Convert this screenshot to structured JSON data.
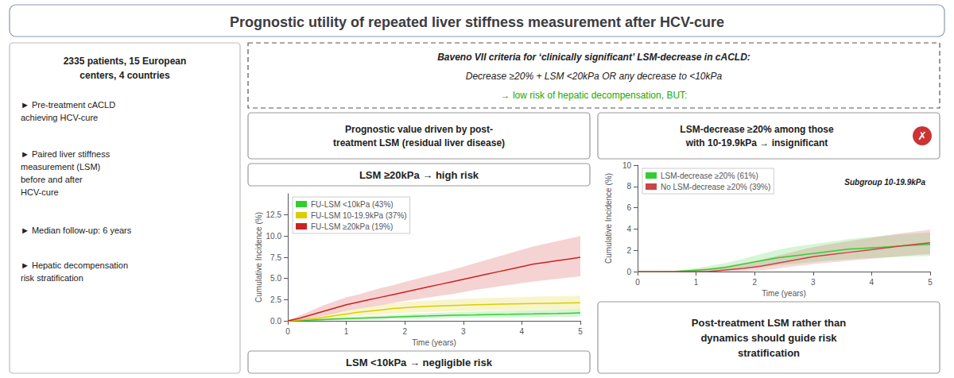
{
  "title": "Prognostic utility of repeated liver stiffness measurement after HCV-cure",
  "annotations": [
    {
      "text": "2335 patients, 15 European\ncenters, 4 countries"
    },
    {
      "text": "► Pre-treatment cACLD\nachieving HCV-cure"
    },
    {
      "text": "► Paired liver stiffness\nmeasurement (LSM)\nbefore and after\nHCV-cure"
    },
    {
      "text": "► Median follow-up: 6 years"
    },
    {
      "text": "► Hepatic decompensation\nrisk stratification"
    },
    {
      "text": "Baveno VII criteria for ‘clinically significant’ LSM-decrease in cACLD:"
    },
    {
      "text": "Decrease ≥20% + LSM <20kPa OR any decrease to <10kPa"
    },
    {
      "text": "→ low risk of hepatic decompensation, BUT:",
      "color": "#22aa00"
    },
    {
      "text": "Prognostic value driven by post-\ntreatment LSM (residual liver disease)"
    },
    {
      "text": "LSM-decrease ≥20% among those\nwith 10-19.9kPa → insignificant"
    },
    {
      "text": "✗",
      "color": "#cc3333"
    },
    {
      "text": "LSM ≥20kPa → high risk"
    },
    {
      "text": "LSM <10kPa → negligible risk"
    },
    {
      "text": "Post-treatment LSM rather than\ndynamics should guide risk\nstratification"
    }
  ],
  "chart_data": [
    {
      "type": "line",
      "xlabel": "Time (years)",
      "ylabel": "Cumulative Incidence (%)",
      "xlim": [
        0,
        5
      ],
      "ylim": [
        0,
        15
      ],
      "xticks": [
        0,
        1,
        2,
        3,
        4,
        5
      ],
      "yticks": [
        {
          "value": 0,
          "label": "0.0"
        },
        2.5,
        {
          "value": 5,
          "label": "5.0"
        },
        7.5,
        {
          "value": 10,
          "label": "10.0"
        },
        12.5
      ],
      "grid": false,
      "legend": "upper left",
      "x": [
        0,
        0.2,
        0.4,
        0.6,
        0.8,
        1.0,
        1.2,
        1.4,
        1.6,
        1.8,
        2.0,
        2.2,
        2.4,
        2.6,
        2.8,
        3.0,
        3.2,
        3.4,
        3.6,
        3.8,
        4.0,
        4.2,
        4.4,
        4.6,
        4.8,
        5.0
      ],
      "series": [
        {
          "name": "FU-LSM <10kPa (43%)",
          "color": "#33cc33",
          "values": [
            0,
            0.05,
            0.1,
            0.15,
            0.2,
            0.25,
            0.3,
            0.35,
            0.4,
            0.45,
            0.5,
            0.55,
            0.58,
            0.62,
            0.65,
            0.68,
            0.7,
            0.73,
            0.75,
            0.77,
            0.8,
            0.82,
            0.85,
            0.87,
            0.9,
            0.93
          ],
          "y_low": [
            0,
            0.0,
            0.02,
            0.05,
            0.08,
            0.1,
            0.12,
            0.15,
            0.17,
            0.2,
            0.22,
            0.25,
            0.27,
            0.3,
            0.32,
            0.34,
            0.35,
            0.37,
            0.38,
            0.4,
            0.42,
            0.43,
            0.45,
            0.46,
            0.48,
            0.5
          ],
          "y_high": [
            0,
            0.1,
            0.2,
            0.3,
            0.38,
            0.42,
            0.5,
            0.57,
            0.63,
            0.7,
            0.78,
            0.85,
            0.9,
            0.95,
            1.0,
            1.05,
            1.08,
            1.12,
            1.15,
            1.18,
            1.22,
            1.25,
            1.27,
            1.3,
            1.33,
            1.38
          ]
        },
        {
          "name": "FU-LSM 10-19.9kPa (37%)",
          "color": "#ddcc00",
          "values": [
            0,
            0.1,
            0.2,
            0.4,
            0.6,
            0.8,
            1.0,
            1.15,
            1.3,
            1.45,
            1.55,
            1.65,
            1.7,
            1.75,
            1.8,
            1.85,
            1.9,
            1.93,
            1.96,
            1.99,
            2.02,
            2.05,
            2.07,
            2.09,
            2.11,
            2.13
          ],
          "y_low": [
            0,
            0.0,
            0.05,
            0.15,
            0.25,
            0.4,
            0.55,
            0.65,
            0.75,
            0.85,
            0.92,
            1.0,
            1.03,
            1.07,
            1.1,
            1.13,
            1.17,
            1.19,
            1.21,
            1.23,
            1.25,
            1.27,
            1.28,
            1.3,
            1.31,
            1.33
          ],
          "y_high": [
            0,
            0.2,
            0.4,
            0.7,
            1.0,
            1.25,
            1.5,
            1.68,
            1.88,
            2.08,
            2.2,
            2.33,
            2.4,
            2.47,
            2.53,
            2.6,
            2.65,
            2.69,
            2.73,
            2.77,
            2.81,
            2.85,
            2.88,
            2.91,
            2.94,
            2.97
          ]
        },
        {
          "name": "FU-LSM ≥20kPa (19%)",
          "color": "#cc2222",
          "values": [
            0,
            0.3,
            0.7,
            1.1,
            1.5,
            1.9,
            2.2,
            2.5,
            2.8,
            3.1,
            3.4,
            3.7,
            4.0,
            4.3,
            4.6,
            4.9,
            5.2,
            5.5,
            5.8,
            6.1,
            6.4,
            6.7,
            6.9,
            7.1,
            7.3,
            7.5
          ],
          "y_low": [
            0,
            0.1,
            0.3,
            0.6,
            0.9,
            1.2,
            1.45,
            1.65,
            1.85,
            2.1,
            2.35,
            2.55,
            2.75,
            2.95,
            3.15,
            3.4,
            3.65,
            3.85,
            4.05,
            4.25,
            4.45,
            4.65,
            4.8,
            4.95,
            5.1,
            5.25
          ],
          "y_high": [
            0,
            0.6,
            1.2,
            1.8,
            2.3,
            2.8,
            3.1,
            3.5,
            3.9,
            4.2,
            4.6,
            4.95,
            5.3,
            5.65,
            6.0,
            6.4,
            6.8,
            7.2,
            7.6,
            8.0,
            8.4,
            8.8,
            9.1,
            9.4,
            9.7,
            10.0
          ]
        }
      ]
    },
    {
      "type": "line",
      "xlabel": "Time (years)",
      "ylabel": "Cumulative Incidence (%)",
      "xlim": [
        0,
        5
      ],
      "ylim": [
        0,
        10
      ],
      "xticks": [
        0,
        1,
        2,
        3,
        4,
        5
      ],
      "yticks": [
        0,
        2,
        4,
        6,
        8,
        10
      ],
      "grid": false,
      "legend": "upper left",
      "annotations": [
        {
          "text": "Subgroup 10-19.9kPa"
        }
      ],
      "x": [
        0,
        0.3,
        0.6,
        0.9,
        1.2,
        1.5,
        1.8,
        2.1,
        2.4,
        2.7,
        3.0,
        3.3,
        3.6,
        3.9,
        4.2,
        4.5,
        4.8,
        5.0
      ],
      "series": [
        {
          "name": "LSM-decrease ≥20% (61%)",
          "color": "#33cc33",
          "values": [
            0,
            0.0,
            0.0,
            0.1,
            0.2,
            0.4,
            0.7,
            1.0,
            1.3,
            1.5,
            1.7,
            1.9,
            2.1,
            2.2,
            2.3,
            2.4,
            2.5,
            2.55
          ],
          "y_low": [
            0,
            0.0,
            0.0,
            0.0,
            0.0,
            0.05,
            0.2,
            0.4,
            0.6,
            0.75,
            0.9,
            1.05,
            1.15,
            1.25,
            1.32,
            1.38,
            1.44,
            1.48
          ],
          "y_high": [
            0,
            0.0,
            0.05,
            0.25,
            0.5,
            0.8,
            1.2,
            1.65,
            2.05,
            2.35,
            2.6,
            2.8,
            3.05,
            3.2,
            3.35,
            3.5,
            3.6,
            3.68
          ]
        },
        {
          "name": "No LSM-decrease ≥20% (39%)",
          "color": "#cc4444",
          "values": [
            0,
            0.0,
            0.0,
            0.0,
            0.0,
            0.15,
            0.3,
            0.5,
            0.8,
            1.1,
            1.4,
            1.6,
            1.8,
            2.0,
            2.2,
            2.4,
            2.6,
            2.7
          ],
          "y_low": [
            0,
            0.0,
            0.0,
            0.0,
            0.0,
            0.0,
            0.0,
            0.1,
            0.3,
            0.5,
            0.7,
            0.85,
            1.0,
            1.15,
            1.3,
            1.45,
            1.58,
            1.65
          ],
          "y_high": [
            0,
            0.0,
            0.05,
            0.15,
            0.3,
            0.5,
            0.8,
            1.1,
            1.5,
            1.9,
            2.3,
            2.6,
            2.85,
            3.1,
            3.35,
            3.6,
            3.8,
            3.95
          ]
        }
      ]
    }
  ]
}
